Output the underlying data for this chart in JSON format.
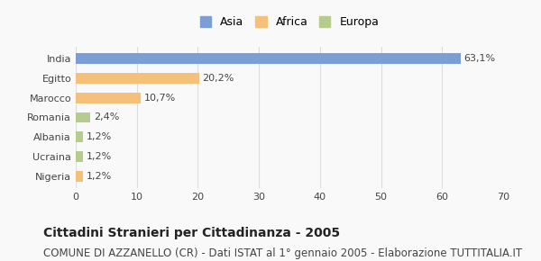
{
  "categories": [
    "India",
    "Egitto",
    "Marocco",
    "Romania",
    "Albania",
    "Ucraina",
    "Nigeria"
  ],
  "values": [
    63.1,
    20.2,
    10.7,
    2.4,
    1.2,
    1.2,
    1.2
  ],
  "labels": [
    "63,1%",
    "20,2%",
    "10,7%",
    "2,4%",
    "1,2%",
    "1,2%",
    "1,2%"
  ],
  "colors": [
    "#7b9fd4",
    "#f5c07a",
    "#f5c07a",
    "#b5cc8e",
    "#b5cc8e",
    "#b5cc8e",
    "#f5c07a"
  ],
  "legend_labels": [
    "Asia",
    "Africa",
    "Europa"
  ],
  "legend_colors": [
    "#7b9fd4",
    "#f5c07a",
    "#b5cc8e"
  ],
  "xlim": [
    0,
    70
  ],
  "xticks": [
    0,
    10,
    20,
    30,
    40,
    50,
    60,
    70
  ],
  "title": "Cittadini Stranieri per Cittadinanza - 2005",
  "subtitle": "COMUNE DI AZZANELLO (CR) - Dati ISTAT al 1° gennaio 2005 - Elaborazione TUTTITALIA.IT",
  "bar_height": 0.55,
  "bg_color": "#f9f9f9",
  "grid_color": "#dddddd",
  "title_fontsize": 10,
  "subtitle_fontsize": 8.5,
  "label_fontsize": 8,
  "tick_fontsize": 8,
  "legend_fontsize": 9
}
